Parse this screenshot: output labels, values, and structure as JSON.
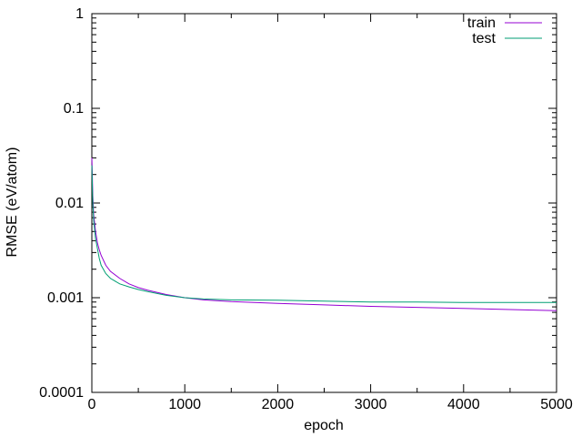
{
  "chart_data": {
    "type": "line",
    "title": "",
    "xlabel": "epoch",
    "ylabel": "RMSE (eV/atom)",
    "xlim": [
      0,
      5000
    ],
    "ylim": [
      0.0001,
      1
    ],
    "yscale": "log",
    "grid": false,
    "legend_position": "top-right",
    "x_ticks": [
      0,
      1000,
      2000,
      3000,
      4000,
      5000
    ],
    "x_tick_labels": [
      "0",
      "1000",
      "2000",
      "3000",
      "4000",
      "5000"
    ],
    "y_ticks": [
      0.0001,
      0.001,
      0.01,
      0.1,
      1
    ],
    "y_tick_labels": [
      "0.0001",
      "0.001",
      "0.01",
      "0.1",
      "1"
    ],
    "series": [
      {
        "name": "train",
        "color": "#9400d3",
        "x": [
          0,
          5,
          10,
          20,
          40,
          60,
          80,
          100,
          150,
          200,
          300,
          400,
          500,
          600,
          800,
          1000,
          1200,
          1500,
          2000,
          2500,
          3000,
          3500,
          4000,
          4500,
          5000
        ],
        "y": [
          0.03,
          0.02,
          0.012,
          0.0075,
          0.005,
          0.0038,
          0.0032,
          0.0028,
          0.0022,
          0.0019,
          0.0016,
          0.0014,
          0.00128,
          0.0012,
          0.00108,
          0.001,
          0.00095,
          0.00091,
          0.00087,
          0.00084,
          0.00081,
          0.00079,
          0.00077,
          0.00075,
          0.00073
        ]
      },
      {
        "name": "test",
        "color": "#009e73",
        "x": [
          0,
          5,
          10,
          20,
          40,
          60,
          80,
          100,
          150,
          200,
          300,
          400,
          500,
          600,
          800,
          1000,
          1200,
          1500,
          2000,
          2500,
          3000,
          3500,
          4000,
          4500,
          5000
        ],
        "y": [
          0.025,
          0.016,
          0.01,
          0.0065,
          0.0042,
          0.0033,
          0.0026,
          0.0022,
          0.0018,
          0.0016,
          0.0014,
          0.0013,
          0.00122,
          0.00116,
          0.00106,
          0.001,
          0.00097,
          0.00095,
          0.00094,
          0.00092,
          0.0009,
          0.0009,
          0.00089,
          0.00089,
          0.00089
        ]
      }
    ]
  }
}
